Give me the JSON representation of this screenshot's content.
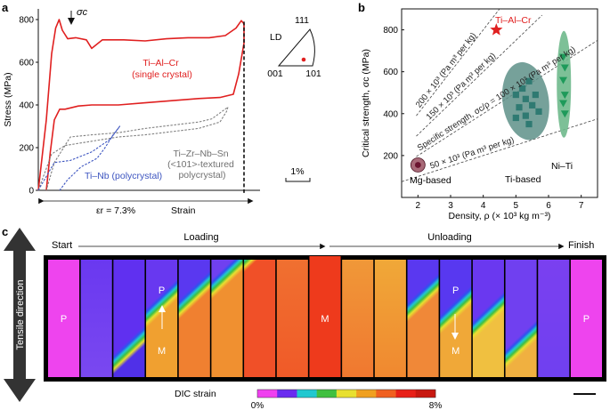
{
  "panels": {
    "a": "a",
    "b": "b",
    "c": "c"
  },
  "chart_data": [
    {
      "panel": "a",
      "type": "line",
      "title": "",
      "xlabel": "Strain",
      "ylabel": "Stress (MPa)",
      "ylim": [
        0,
        850
      ],
      "yticks": [
        0,
        200,
        400,
        600,
        800
      ],
      "xlim_strain_pct": [
        0,
        8.3
      ],
      "grid": false,
      "annotations": {
        "sigma_c": "σc",
        "strain_arrow_label": "εr = 7.3%",
        "scale_bar": "1%",
        "ld_label": "LD",
        "triangle_111": "111",
        "triangle_001": "001",
        "triangle_101": "101"
      },
      "series": [
        {
          "name": "Ti–Al–Cr (single crystal)",
          "label_lines": [
            "Ti–Al–Cr",
            "(single crystal)"
          ],
          "color": "#e02020",
          "style": "solid",
          "loading": [
            [
              0,
              0
            ],
            [
              0.3,
              330
            ],
            [
              0.5,
              640
            ],
            [
              0.65,
              760
            ],
            [
              0.78,
              800
            ],
            [
              0.9,
              750
            ],
            [
              1.1,
              710
            ],
            [
              1.4,
              715
            ],
            [
              1.8,
              705
            ],
            [
              2.0,
              665
            ],
            [
              2.4,
              705
            ],
            [
              3.2,
              705
            ],
            [
              4.0,
              700
            ],
            [
              4.8,
              710
            ],
            [
              5.6,
              715
            ],
            [
              6.4,
              715
            ],
            [
              7.0,
              725
            ],
            [
              7.4,
              760
            ],
            [
              7.6,
              795
            ],
            [
              7.7,
              780
            ],
            [
              7.7,
              690
            ]
          ],
          "unloading": [
            [
              7.7,
              690
            ],
            [
              7.5,
              545
            ],
            [
              7.3,
              450
            ],
            [
              6.8,
              435
            ],
            [
              6.0,
              430
            ],
            [
              5.0,
              420
            ],
            [
              4.0,
              410
            ],
            [
              3.0,
              400
            ],
            [
              2.0,
              400
            ],
            [
              1.5,
              395
            ],
            [
              1.0,
              380
            ],
            [
              0.8,
              380
            ],
            [
              0.6,
              330
            ],
            [
              0.45,
              180
            ],
            [
              0.3,
              0
            ]
          ]
        },
        {
          "name": "Ti–Zr–Nb–Sn (<101>-textured polycrystal)",
          "label_lines": [
            "Ti–Zr–Nb–Sn",
            "(<101>-textured",
            "polycrystal)"
          ],
          "color": "#808080",
          "style": "dashed",
          "loading": [
            [
              0,
              0
            ],
            [
              0.5,
              170
            ],
            [
              1.0,
              210
            ],
            [
              2.0,
              230
            ],
            [
              3.0,
              250
            ],
            [
              4.0,
              260
            ],
            [
              5.0,
              275
            ],
            [
              6.0,
              290
            ],
            [
              6.8,
              320
            ],
            [
              7.05,
              370
            ],
            [
              7.1,
              390
            ]
          ],
          "unloading": [
            [
              7.1,
              390
            ],
            [
              6.5,
              335
            ],
            [
              6.0,
              320
            ],
            [
              5.0,
              305
            ],
            [
              4.0,
              290
            ],
            [
              3.0,
              270
            ],
            [
              2.0,
              260
            ],
            [
              1.2,
              250
            ],
            [
              0.6,
              130
            ],
            [
              0.3,
              0
            ]
          ]
        },
        {
          "name": "Ti–Nb (polycrystal)",
          "label_lines": [
            "Ti–Nb (polycrystal)"
          ],
          "color": "#3d55c0",
          "style": "dashed",
          "loading": [
            [
              0,
              0
            ],
            [
              0.6,
              130
            ],
            [
              1.2,
              140
            ],
            [
              2.0,
              180
            ],
            [
              2.7,
              240
            ],
            [
              3.05,
              300
            ]
          ],
          "unloading": [
            [
              3.05,
              300
            ],
            [
              2.8,
              260
            ],
            [
              2.5,
              200
            ],
            [
              2.2,
              150
            ],
            [
              1.6,
              110
            ],
            [
              1.1,
              50
            ],
            [
              0.8,
              0
            ]
          ]
        }
      ]
    },
    {
      "panel": "b",
      "type": "scatter",
      "title": "",
      "xlabel": "Density, ρ (× 10³ kg m⁻³)",
      "ylabel": "Critical strength, σc (MPa)",
      "xlim": [
        1.5,
        7.5
      ],
      "ylim": [
        0,
        900
      ],
      "xticks": [
        2,
        3,
        4,
        5,
        6,
        7
      ],
      "yticks": [
        200,
        400,
        600,
        800
      ],
      "grid": false,
      "reference_lines": [
        {
          "value": 200,
          "label": "200 × 10³ (Pa m³ per kg)"
        },
        {
          "value": 150,
          "label": "150 × 10³ (Pa m³ per kg)"
        },
        {
          "value": 100,
          "label": "Specific strength, σc/ρ = 100 × 10³ (Pa m³ per kg)"
        },
        {
          "value": 50,
          "label": "50 × 10³ (Pa m³ per kg)"
        }
      ],
      "series": [
        {
          "name": "Ti–Al–Cr",
          "marker": "star",
          "color": "#e02020",
          "points": [
            [
              4.4,
              800
            ]
          ]
        },
        {
          "name": "Mg-based",
          "marker": "circle",
          "color": "#6b1530",
          "points": [
            [
              2.0,
              155
            ]
          ]
        },
        {
          "name": "Ti-based",
          "marker": "square",
          "color": "#2f7a72",
          "points": [
            [
              5.0,
              490
            ],
            [
              5.2,
              520
            ],
            [
              5.3,
              470
            ],
            [
              5.4,
              555
            ],
            [
              5.1,
              430
            ],
            [
              5.5,
              440
            ],
            [
              5.6,
              490
            ],
            [
              5.3,
              390
            ],
            [
              5.7,
              410
            ],
            [
              5.0,
              380
            ],
            [
              5.4,
              350
            ]
          ]
        },
        {
          "name": "Ni–Ti",
          "marker": "triangle-down",
          "color": "#1e9a5a",
          "points": [
            [
              6.45,
              670
            ],
            [
              6.5,
              620
            ],
            [
              6.45,
              560
            ],
            [
              6.5,
              490
            ],
            [
              6.45,
              450
            ],
            [
              6.5,
              400
            ]
          ]
        }
      ]
    }
  ],
  "panel_c": {
    "stages": {
      "start": "Start",
      "loading": "Loading",
      "unloading": "Unloading",
      "finish": "Finish"
    },
    "side_label": "Tensile direction",
    "colorbar": {
      "title": "DIC strain",
      "min": "0%",
      "max": "8%",
      "colors": [
        "#f040f0",
        "#6a2cf0",
        "#20c8d0",
        "#40c040",
        "#e8e030",
        "#f0a020",
        "#f06020",
        "#e82018",
        "#c81810"
      ]
    },
    "phase_labels": {
      "p": "P",
      "m": "M"
    },
    "strips": [
      {
        "top": "#ee44ee",
        "bottom": "#ee44ee",
        "front": null,
        "label": "P"
      },
      {
        "top": "#6a38f0",
        "bottom": "#7a48f0",
        "front": null,
        "label": ""
      },
      {
        "top": "#6030f0",
        "bottom": "#5030e8",
        "front": 0.82,
        "label": ""
      },
      {
        "top": "#6838f0",
        "bottom": "#f0a030",
        "front": 0.45,
        "label": "PM"
      },
      {
        "top": "#5a38f0",
        "bottom": "#f08030",
        "front": 0.38,
        "label": ""
      },
      {
        "top": "#7040f0",
        "bottom": "#f09030",
        "front": 0.22,
        "label": ""
      },
      {
        "top": "#f06030",
        "bottom": "#f05028",
        "front": 0.0,
        "label": ""
      },
      {
        "top": "#f07030",
        "bottom": "#f05a28",
        "front": null,
        "label": ""
      },
      {
        "top": "#ee3a1c",
        "bottom": "#ee3a1c",
        "front": null,
        "label": "M"
      },
      {
        "top": "#f09838",
        "bottom": "#f07830",
        "front": null,
        "label": ""
      },
      {
        "top": "#f0a838",
        "bottom": "#f08830",
        "front": null,
        "label": ""
      },
      {
        "top": "#5a38f0",
        "bottom": "#f08838",
        "front": 0.4,
        "label": ""
      },
      {
        "top": "#5838f0",
        "bottom": "#f0a838",
        "front": 0.5,
        "label": "PM"
      },
      {
        "top": "#6a38f0",
        "bottom": "#f0c040",
        "front": 0.55,
        "label": ""
      },
      {
        "top": "#7040f0",
        "bottom": "#f0b040",
        "front": 0.78,
        "label": ""
      },
      {
        "top": "#7a40f0",
        "bottom": "#7040f0",
        "front": null,
        "label": ""
      },
      {
        "top": "#ee44ee",
        "bottom": "#ee44ee",
        "front": null,
        "label": "P"
      }
    ]
  }
}
